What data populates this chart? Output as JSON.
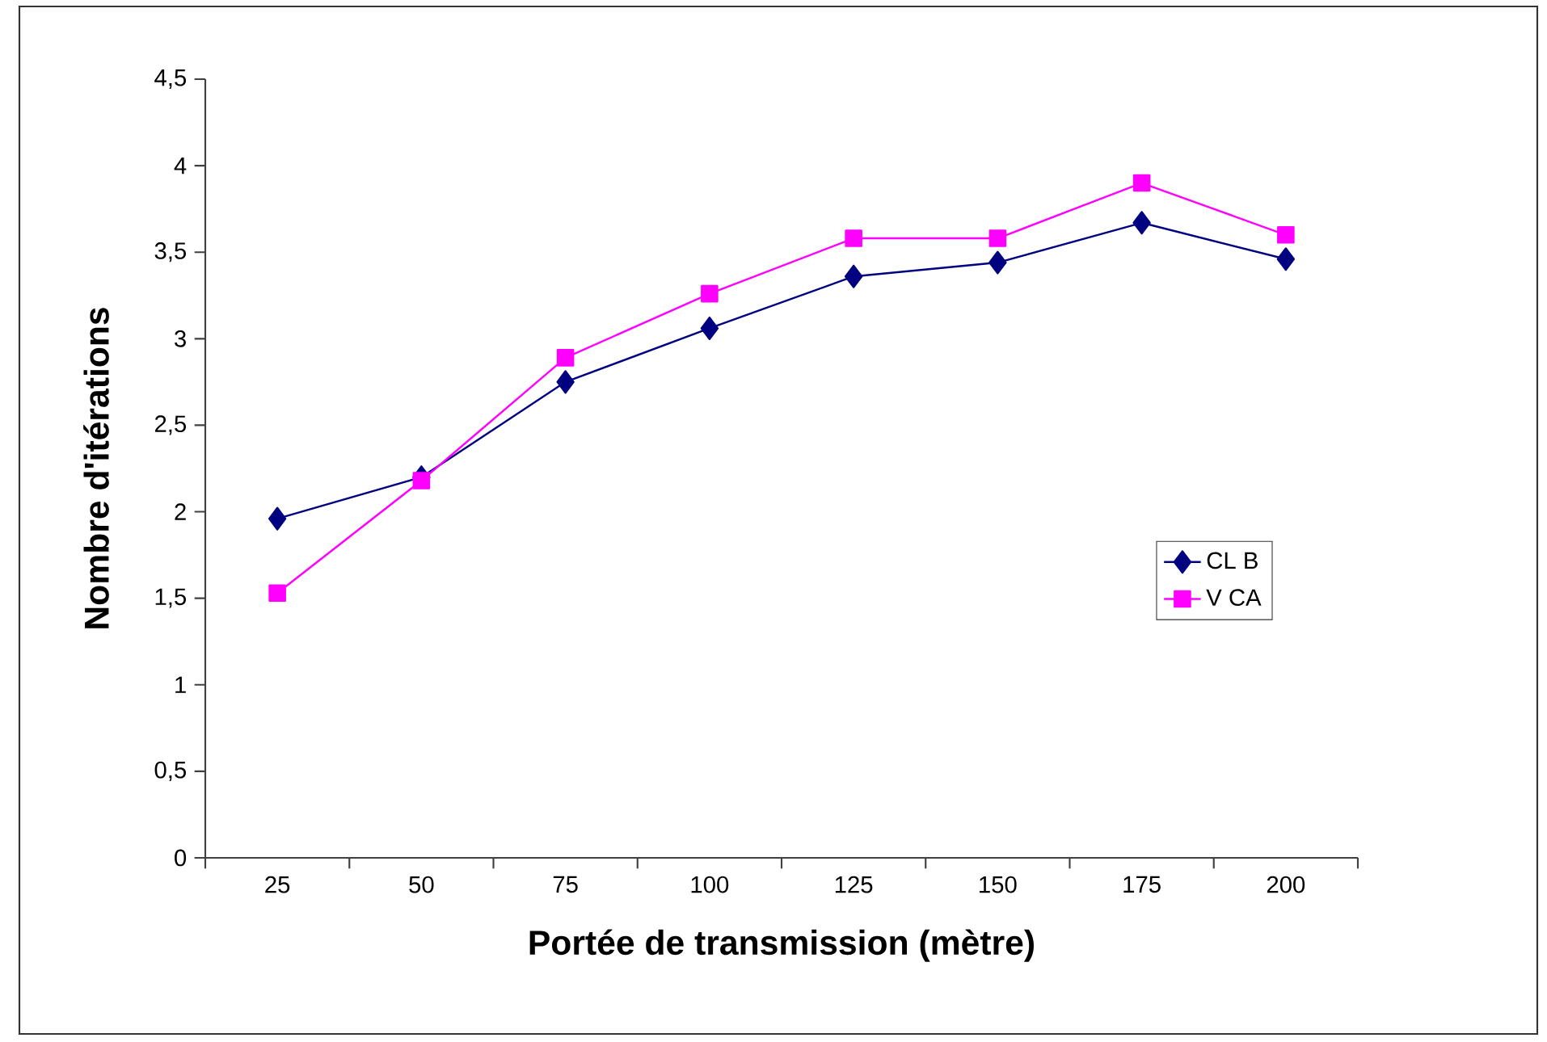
{
  "chart_data": {
    "type": "line",
    "xlabel": "Portée de transmission (mètre)",
    "ylabel": "Nombre d'itérations",
    "categories": [
      "25",
      "50",
      "75",
      "100",
      "125",
      "150",
      "175",
      "200"
    ],
    "series": [
      {
        "name": "CL B",
        "color": "#000080",
        "marker": "diamond",
        "values": [
          1.96,
          2.2,
          2.75,
          3.06,
          3.36,
          3.44,
          3.67,
          3.46
        ]
      },
      {
        "name": "V CA",
        "color": "#ff00ff",
        "marker": "square",
        "values": [
          1.53,
          2.18,
          2.89,
          3.26,
          3.58,
          3.58,
          3.9,
          3.6
        ]
      }
    ],
    "ylim": [
      0,
      4.5
    ],
    "yticks": [
      0,
      {
        "value": 0.5,
        "label": "0,5"
      },
      1,
      {
        "value": 1.5,
        "label": "1,5"
      },
      2,
      {
        "value": 2.5,
        "label": "2,5"
      },
      3,
      {
        "value": 3.5,
        "label": "3,5"
      },
      4,
      {
        "value": 4.5,
        "label": "4,5"
      }
    ],
    "grid": false,
    "legend": "right",
    "line_style": "solid"
  }
}
